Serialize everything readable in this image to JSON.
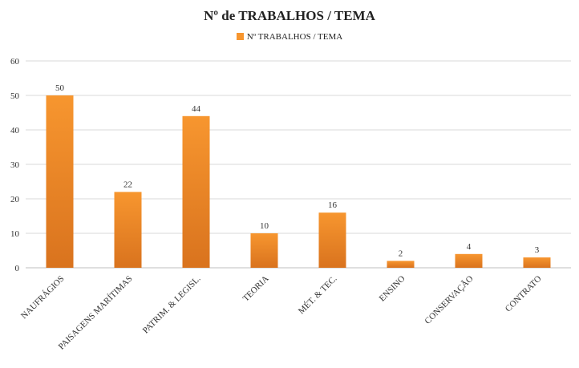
{
  "chart_data": {
    "type": "bar",
    "title": "Nº de TRABALHOS / TEMA",
    "legend": {
      "label": "Nº TRABALHOS / TEMA",
      "placement": "top"
    },
    "categories": [
      "NAUFRÁGIOS",
      "PAISAGENS MARÍTIMAS",
      "PATRIM. & LEGISL.",
      "TEORIA",
      "MÉT. & TEC.",
      "ENSINO",
      "CONSERVAÇÃO",
      "CONTRATO"
    ],
    "series": [
      {
        "name": "Nº TRABALHOS / TEMA",
        "values": [
          50,
          22,
          44,
          10,
          16,
          2,
          4,
          3
        ]
      }
    ],
    "data_labels": [
      "50",
      "22",
      "44",
      "10",
      "16",
      "2",
      "4",
      "3"
    ],
    "ylim": [
      0,
      60
    ],
    "yticks": [
      0,
      10,
      20,
      30,
      40,
      50,
      60
    ],
    "grid": true,
    "xlabel": "",
    "ylabel": "",
    "colors": {
      "bar_top": "#F7962F",
      "bar_bottom": "#D9731E",
      "grid": "#d9d9d9",
      "axis": "#bfbfbf"
    }
  }
}
